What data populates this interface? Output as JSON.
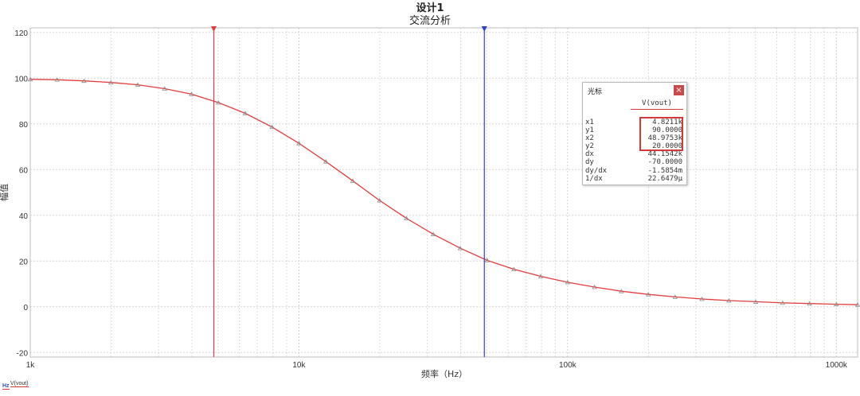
{
  "chart_data": {
    "type": "line",
    "title": "设计1",
    "subtitle": "交流分析",
    "xlabel": "频率（Hz）",
    "ylabel": "幅值",
    "xscale": "log",
    "xlim": [
      1000,
      1200000
    ],
    "ylim": [
      -22,
      122
    ],
    "x_ticks": [
      1000,
      10000,
      100000,
      1000000
    ],
    "x_tick_labels": [
      "1k",
      "10k",
      "100k",
      "1000k"
    ],
    "y_ticks": [
      -20,
      0,
      20,
      40,
      60,
      80,
      100,
      120
    ],
    "y_tick_labels": [
      "-20",
      "0",
      "20",
      "40",
      "60",
      "80",
      "100",
      "120"
    ],
    "grid": true,
    "series": [
      {
        "name": "V(vout)",
        "color": "#e23c3c",
        "marker": "triangle",
        "x": [
          1000,
          1259,
          1585,
          1995,
          2512,
          3162,
          3981,
          5012,
          6310,
          7943,
          10000,
          12589,
          15849,
          19953,
          25119,
          31623,
          39811,
          50119,
          63096,
          79433,
          100000,
          125893,
          158489,
          199526,
          251189,
          316228,
          398107,
          501187,
          630957,
          794328,
          1000000,
          1200000
        ],
        "y": [
          99.5,
          99.3,
          98.8,
          98.1,
          97.1,
          95.4,
          93.0,
          89.3,
          84.6,
          78.6,
          71.5,
          63.5,
          55.1,
          46.5,
          38.7,
          31.7,
          25.6,
          20.3,
          16.4,
          13.3,
          10.7,
          8.6,
          6.8,
          5.4,
          4.3,
          3.4,
          2.7,
          2.2,
          1.7,
          1.4,
          1.1,
          0.9
        ]
      }
    ],
    "cursors": [
      {
        "name": "cursor-1",
        "x": 4821.1,
        "color": "#e23c3c"
      },
      {
        "name": "cursor-2",
        "x": 48975.3,
        "color": "#2e3fd6"
      }
    ]
  },
  "cursor_panel": {
    "title": "光标",
    "close_label": "×",
    "series_header": "V(vout)",
    "rows": [
      {
        "label": "x1",
        "value": "4.8211k"
      },
      {
        "label": "y1",
        "value": "90.0000"
      },
      {
        "label": "x2",
        "value": "48.9753k"
      },
      {
        "label": "y2",
        "value": "20.0000"
      },
      {
        "label": "dx",
        "value": "44.1542k"
      },
      {
        "label": "dy",
        "value": "-70.0000"
      },
      {
        "label": "dy/dx",
        "value": "-1.5854m"
      },
      {
        "label": "1/dx",
        "value": "22.6479μ"
      }
    ]
  },
  "legend": {
    "icon_text": "Hz",
    "series_name": "V(vout)"
  }
}
